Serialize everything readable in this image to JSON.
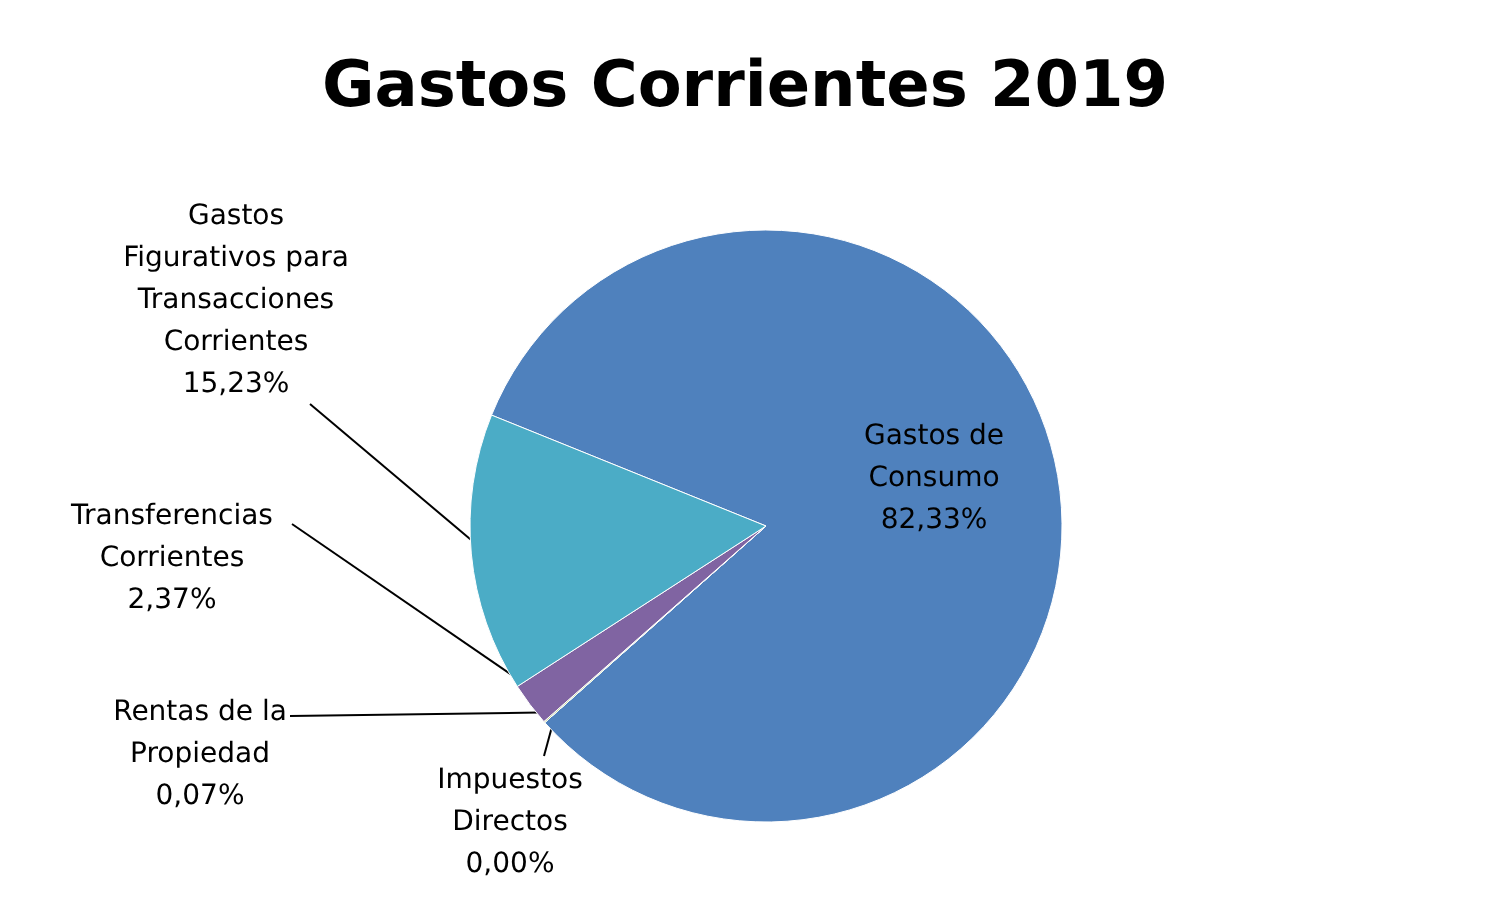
{
  "chart_data": {
    "type": "pie",
    "title": "Gastos Corrientes 2019",
    "categories": [
      "Gastos de\nConsumo",
      "Impuestos\nDirectos",
      "Rentas de la\nPropiedad",
      "Transferencias\nCorrientes",
      "Gastos\nFigurativos para\nTransacciones\nCorrientes"
    ],
    "values": [
      82.33,
      0.0,
      0.07,
      2.37,
      15.23
    ],
    "value_labels": [
      "82,33%",
      "0,00%",
      "0,07%",
      "2,37%",
      "15,23%"
    ],
    "colors": [
      "#4f81bd",
      "#c0504d",
      "#9bbb59",
      "#8064a2",
      "#4bacc6"
    ]
  }
}
